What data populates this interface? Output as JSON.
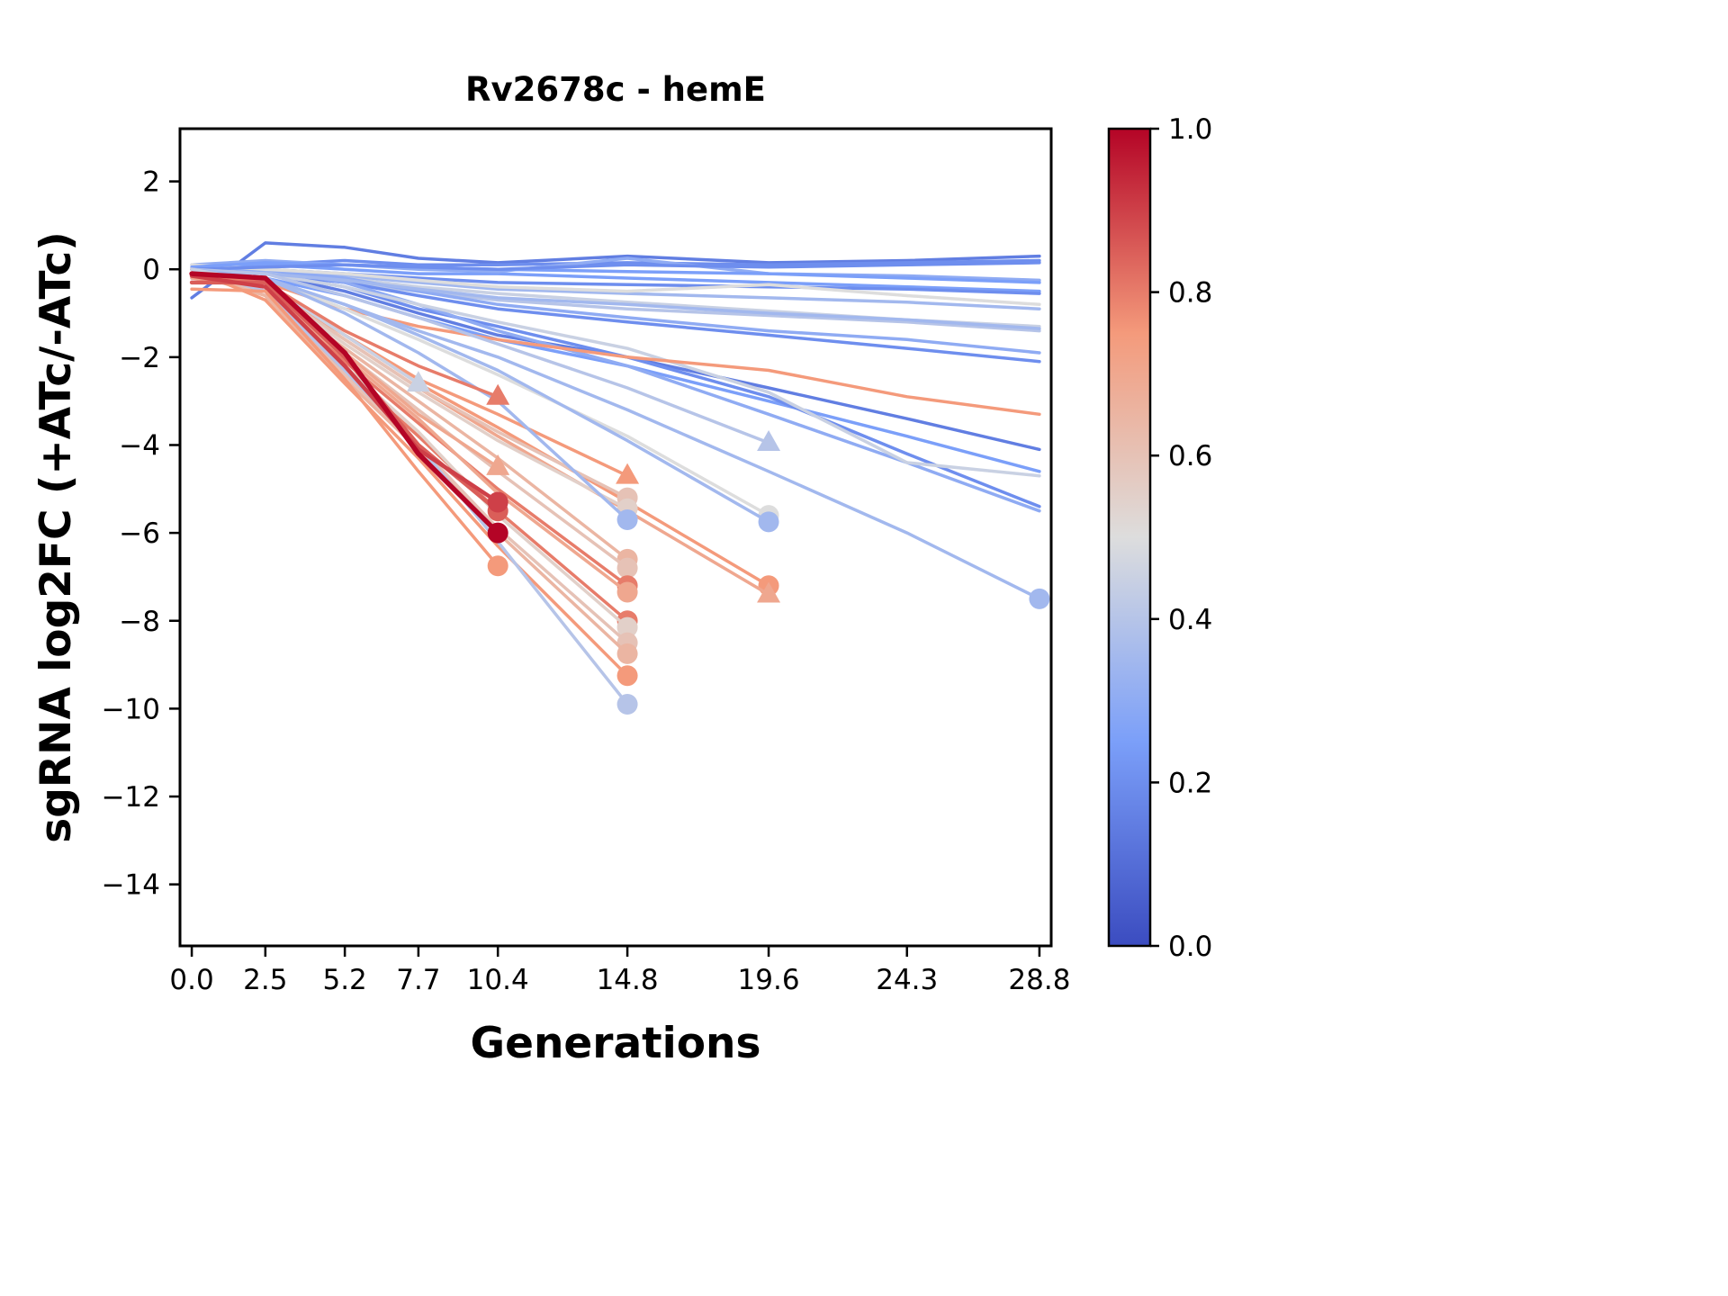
{
  "chart_data": {
    "type": "line",
    "title": "Rv2678c - hemE",
    "xlabel": "Generations",
    "ylabel": "sgRNA log2FC (+ATc/-ATc)",
    "x": [
      0.0,
      2.5,
      5.2,
      7.7,
      10.4,
      14.8,
      19.6,
      24.3,
      28.8
    ],
    "x_tick_labels": [
      "0.0",
      "2.5",
      "5.2",
      "7.7",
      "10.4",
      "14.8",
      "19.6",
      "24.3",
      "28.8"
    ],
    "y_ticks": [
      2,
      0,
      -2,
      -4,
      -6,
      -8,
      -10,
      -12,
      -14
    ],
    "y_tick_labels": [
      "2",
      "0",
      "−2",
      "−4",
      "−6",
      "−8",
      "−10",
      "−12",
      "−14"
    ],
    "xlim": [
      -0.4,
      29.2
    ],
    "ylim": [
      -15.4,
      3.2
    ],
    "grid": false,
    "legend": "colorbar",
    "colorbar": {
      "min": 0.0,
      "max": 1.0,
      "ticks": [
        0.0,
        0.2,
        0.4,
        0.6,
        0.8,
        1.0
      ],
      "tick_labels": [
        "0.0",
        "0.2",
        "0.4",
        "0.6",
        "0.8",
        "1.0"
      ],
      "colormap": "coolwarm",
      "stops": [
        [
          0.0,
          "#3b4cc0"
        ],
        [
          0.25,
          "#7b9ff9"
        ],
        [
          0.5,
          "#dddddd"
        ],
        [
          0.75,
          "#f49a7b"
        ],
        [
          1.0,
          "#b40426"
        ]
      ]
    },
    "series": [
      {
        "v": 0.15,
        "marker": null,
        "y": [
          -0.65,
          0.6,
          0.5,
          0.25,
          0.15,
          0.3,
          0.15,
          0.2,
          0.3
        ]
      },
      {
        "v": 0.2,
        "marker": null,
        "y": [
          0.0,
          0.1,
          0.2,
          0.1,
          0.1,
          0.15,
          0.1,
          0.15,
          0.2
        ]
      },
      {
        "v": 0.25,
        "marker": null,
        "y": [
          0.0,
          0.1,
          0.0,
          -0.1,
          -0.1,
          -0.2,
          -0.3,
          -0.4,
          -0.5
        ]
      },
      {
        "v": 0.3,
        "marker": null,
        "y": [
          0.1,
          0.2,
          0.1,
          0.0,
          -0.05,
          0.25,
          -0.1,
          -0.15,
          -0.25
        ]
      },
      {
        "v": 0.2,
        "marker": null,
        "y": [
          -0.1,
          0.0,
          -0.1,
          -0.2,
          -0.3,
          -0.35,
          -0.4,
          -0.45,
          -0.55
        ]
      },
      {
        "v": 0.35,
        "marker": null,
        "y": [
          0.0,
          -0.05,
          -0.15,
          -0.3,
          -0.45,
          -0.55,
          -0.65,
          -0.75,
          -0.9
        ]
      },
      {
        "v": 0.4,
        "marker": null,
        "y": [
          0.0,
          -0.1,
          -0.3,
          -0.5,
          -0.7,
          -0.9,
          -1.05,
          -1.2,
          -1.4
        ]
      },
      {
        "v": 0.45,
        "marker": null,
        "y": [
          0.0,
          -0.1,
          -0.2,
          -0.4,
          -0.55,
          -0.75,
          -0.95,
          -1.15,
          -1.3
        ]
      },
      {
        "v": 0.3,
        "marker": null,
        "y": [
          0.0,
          0.0,
          -0.2,
          -0.5,
          -0.8,
          -1.1,
          -1.4,
          -1.6,
          -1.9
        ]
      },
      {
        "v": 0.2,
        "marker": null,
        "y": [
          0.0,
          -0.1,
          -0.3,
          -0.6,
          -0.9,
          -1.2,
          -1.5,
          -1.8,
          -2.1
        ]
      },
      {
        "v": 0.25,
        "marker": null,
        "y": [
          0.0,
          -0.2,
          -0.6,
          -1.1,
          -1.6,
          -2.2,
          -3.0,
          -3.8,
          -4.6
        ]
      },
      {
        "v": 0.15,
        "marker": null,
        "y": [
          0.0,
          -0.1,
          -0.5,
          -1.0,
          -1.5,
          -2.0,
          -2.7,
          -3.4,
          -4.1
        ]
      },
      {
        "v": 0.2,
        "marker": null,
        "y": [
          0.0,
          -0.1,
          -0.4,
          -0.9,
          -1.3,
          -2.0,
          -2.9,
          -4.2,
          -5.4
        ]
      },
      {
        "v": 0.3,
        "marker": null,
        "y": [
          -0.2,
          0.0,
          -0.3,
          -0.8,
          -1.4,
          -2.2,
          -3.3,
          -4.4,
          -5.5
        ]
      },
      {
        "v": 0.45,
        "marker": null,
        "y": [
          0.0,
          -0.1,
          -0.4,
          -0.8,
          -1.2,
          -1.8,
          -2.8,
          -4.4,
          -4.7
        ]
      },
      {
        "v": 0.75,
        "marker": null,
        "y": [
          0.0,
          -0.3,
          -0.9,
          -1.3,
          -1.6,
          -2.0,
          -2.3,
          -2.9,
          -3.3
        ]
      },
      {
        "v": 0.5,
        "marker": null,
        "y": [
          0.1,
          0.0,
          -0.1,
          -0.25,
          -0.4,
          -0.5,
          -0.35,
          -0.6,
          -0.8
        ]
      },
      {
        "v": 0.35,
        "marker": null,
        "y": [
          0.0,
          -0.1,
          -0.25,
          -0.45,
          -0.65,
          -0.8,
          -1.0,
          -1.15,
          -1.35
        ]
      },
      {
        "v": 0.25,
        "marker": null,
        "y": [
          0.05,
          0.15,
          0.1,
          0.05,
          0.0,
          -0.05,
          -0.1,
          -0.2,
          -0.3
        ]
      },
      {
        "v": 0.2,
        "marker": null,
        "y": [
          0.0,
          0.05,
          0.1,
          0.05,
          0.0,
          0.1,
          0.05,
          0.1,
          0.15
        ]
      },
      {
        "v": 0.35,
        "marker": "o",
        "y": [
          0.0,
          -0.2,
          -0.8,
          -1.4,
          -2.0,
          -3.2,
          -4.6,
          -6.0,
          -7.5
        ]
      },
      {
        "v": 0.5,
        "marker": "o",
        "y": [
          0.0,
          -0.2,
          -0.9,
          -1.6,
          -2.4,
          -3.8,
          -5.6
        ]
      },
      {
        "v": 0.35,
        "marker": "o",
        "y": [
          0.0,
          -0.2,
          -0.8,
          -1.5,
          -2.3,
          -3.9,
          -5.75
        ]
      },
      {
        "v": 0.75,
        "marker": "o",
        "y": [
          0.0,
          -0.4,
          -1.5,
          -2.6,
          -3.6,
          -5.3,
          -7.2
        ]
      },
      {
        "v": 0.7,
        "marker": "^",
        "y": [
          0.0,
          -0.4,
          -1.6,
          -2.7,
          -3.8,
          -5.5,
          -7.4
        ]
      },
      {
        "v": 0.4,
        "marker": "^",
        "y": [
          0.0,
          -0.1,
          -0.6,
          -1.1,
          -1.7,
          -2.7,
          -3.95
        ]
      },
      {
        "v": 0.75,
        "marker": "^",
        "y": [
          0.0,
          -0.3,
          -1.5,
          -2.5,
          -3.3,
          -4.7
        ]
      },
      {
        "v": 0.6,
        "marker": "o",
        "y": [
          0.0,
          -0.4,
          -1.6,
          -2.7,
          -3.7,
          -5.2
        ]
      },
      {
        "v": 0.55,
        "marker": "o",
        "y": [
          -0.1,
          -0.4,
          -1.7,
          -2.8,
          -3.9,
          -5.45
        ]
      },
      {
        "v": 0.35,
        "marker": "o",
        "y": [
          0.0,
          -0.2,
          -1.0,
          -1.9,
          -3.0,
          -5.7
        ]
      },
      {
        "v": 0.65,
        "marker": "o",
        "y": [
          0.0,
          -0.5,
          -1.8,
          -3.0,
          -4.3,
          -6.6
        ]
      },
      {
        "v": 0.6,
        "marker": "o",
        "y": [
          0.0,
          -0.4,
          -1.9,
          -3.2,
          -4.6,
          -6.8
        ]
      },
      {
        "v": 0.8,
        "marker": "o",
        "y": [
          0.0,
          -0.5,
          -2.1,
          -3.5,
          -5.0,
          -7.2
        ]
      },
      {
        "v": 0.7,
        "marker": "o",
        "y": [
          -0.1,
          -0.5,
          -2.0,
          -3.4,
          -5.1,
          -7.35
        ]
      },
      {
        "v": 0.8,
        "marker": "o",
        "y": [
          0.0,
          -0.6,
          -2.3,
          -3.8,
          -5.5,
          -8.0
        ]
      },
      {
        "v": 0.55,
        "marker": "o",
        "y": [
          0.0,
          -0.5,
          -2.2,
          -3.7,
          -5.6,
          -8.15
        ]
      },
      {
        "v": 0.6,
        "marker": "o",
        "y": [
          0.0,
          -0.6,
          -2.4,
          -4.0,
          -5.9,
          -8.5
        ]
      },
      {
        "v": 0.65,
        "marker": "o",
        "y": [
          -0.1,
          -0.6,
          -2.5,
          -4.1,
          -6.0,
          -8.75
        ]
      },
      {
        "v": 0.75,
        "marker": "o",
        "y": [
          0.0,
          -0.7,
          -2.6,
          -4.3,
          -6.3,
          -9.25
        ]
      },
      {
        "v": 0.4,
        "marker": "o",
        "y": [
          0.0,
          -0.5,
          -2.3,
          -4.0,
          -6.2,
          -9.9
        ]
      },
      {
        "v": 0.45,
        "marker": "^",
        "y": [
          0.0,
          -0.3,
          -1.5,
          -2.6
        ]
      },
      {
        "v": 0.8,
        "marker": "^",
        "y": [
          -0.1,
          -0.3,
          -1.4,
          -2.2,
          -2.9
        ]
      },
      {
        "v": 0.7,
        "marker": "^",
        "y": [
          -0.2,
          -0.4,
          -1.9,
          -3.3,
          -4.5
        ]
      },
      {
        "v": 0.85,
        "marker": "o",
        "lw": 4.5,
        "y": [
          -0.3,
          -0.3,
          -2.0,
          -4.0,
          -5.5
        ]
      },
      {
        "v": 0.9,
        "marker": "o",
        "lw": 4.5,
        "y": [
          -0.15,
          -0.4,
          -2.2,
          -4.1,
          -5.3
        ]
      },
      {
        "v": 1.0,
        "marker": "o",
        "lw": 5.5,
        "y": [
          -0.1,
          -0.2,
          -1.9,
          -4.2,
          -6.0
        ]
      },
      {
        "v": 0.75,
        "marker": "o",
        "y": [
          -0.45,
          -0.5,
          -2.5,
          -4.6,
          -6.75
        ]
      }
    ]
  }
}
